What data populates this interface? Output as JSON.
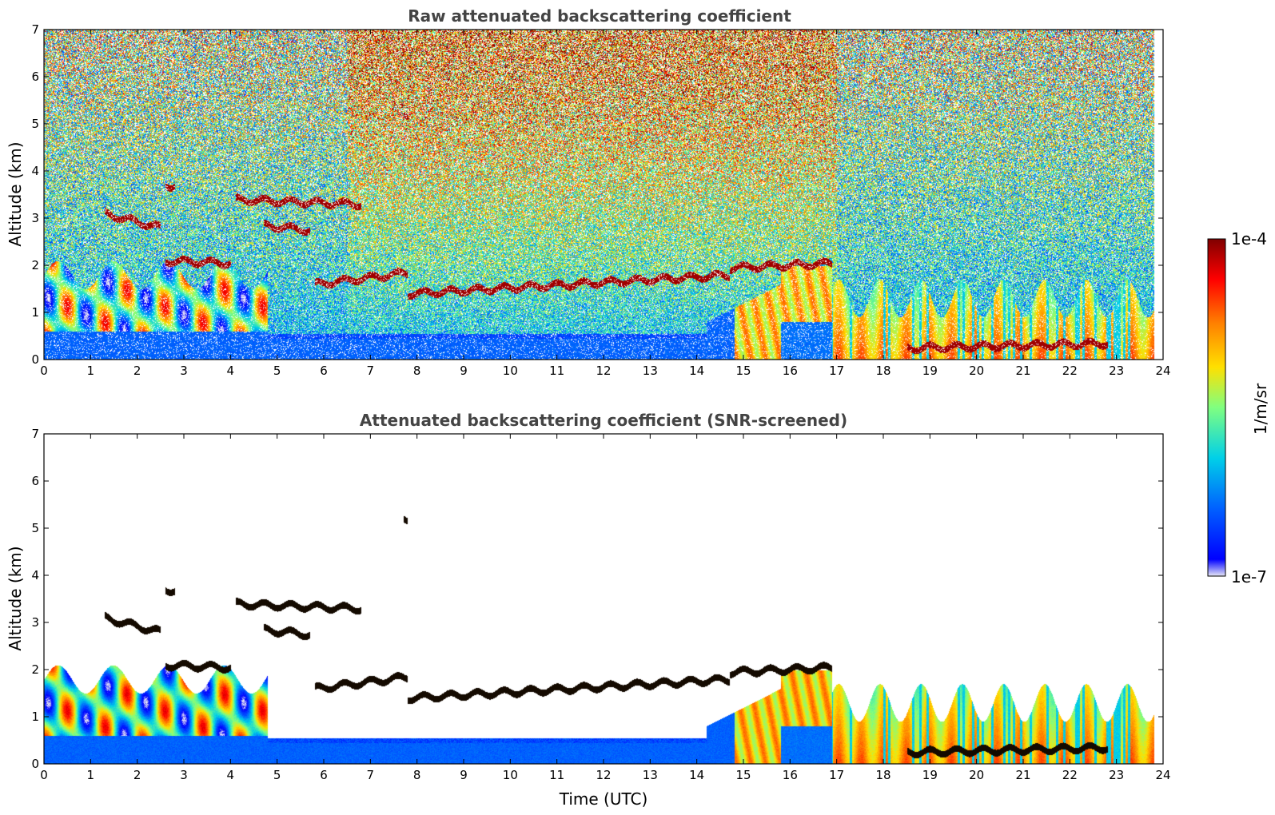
{
  "chart_data": [
    {
      "type": "heatmap",
      "title": "Raw attenuated backscattering coefficient",
      "xlabel": "",
      "ylabel": "Altitude (km)",
      "xlim": [
        0,
        24
      ],
      "ylim": [
        0,
        7
      ],
      "xticks": [
        0,
        1,
        2,
        3,
        4,
        5,
        6,
        7,
        8,
        9,
        10,
        11,
        12,
        13,
        14,
        15,
        16,
        17,
        18,
        19,
        20,
        21,
        22,
        23,
        24
      ],
      "yticks": [
        0,
        1,
        2,
        3,
        4,
        5,
        6,
        7
      ],
      "screened": false,
      "data_end_time": 23.8
    },
    {
      "type": "heatmap",
      "title": "Attenuated backscattering coefficient (SNR-screened)",
      "xlabel": "Time (UTC)",
      "ylabel": "Altitude (km)",
      "xlim": [
        0,
        24
      ],
      "ylim": [
        0,
        7
      ],
      "xticks": [
        0,
        1,
        2,
        3,
        4,
        5,
        6,
        7,
        8,
        9,
        10,
        11,
        12,
        13,
        14,
        15,
        16,
        17,
        18,
        19,
        20,
        21,
        22,
        23,
        24
      ],
      "yticks": [
        0,
        1,
        2,
        3,
        4,
        5,
        6,
        7
      ],
      "screened": true,
      "data_end_time": 23.8
    }
  ],
  "colorbar": {
    "label": "1/m/sr",
    "min_label": "1e-7",
    "max_label": "1e-4",
    "scale": "log",
    "colormap": [
      "#e6e6f5",
      "#0000ff",
      "#0080ff",
      "#00e0e0",
      "#80ff80",
      "#ffe000",
      "#ff8000",
      "#ff0000",
      "#800000"
    ]
  },
  "features": {
    "cloud_layers": [
      {
        "t0": 1.3,
        "t1": 2.5,
        "alt0": 3.1,
        "alt1": 2.8
      },
      {
        "t0": 4.1,
        "t1": 6.8,
        "alt0": 3.4,
        "alt1": 3.3
      },
      {
        "t0": 4.7,
        "t1": 5.7,
        "alt0": 2.85,
        "alt1": 2.75
      },
      {
        "t0": 2.6,
        "t1": 4.0,
        "alt0": 2.1,
        "alt1": 2.05
      },
      {
        "t0": 5.8,
        "t1": 7.8,
        "alt0": 1.6,
        "alt1": 1.85
      },
      {
        "t0": 7.8,
        "t1": 14.7,
        "alt0": 1.4,
        "alt1": 1.8
      },
      {
        "t0": 14.7,
        "t1": 16.9,
        "alt0": 1.95,
        "alt1": 2.05
      },
      {
        "t0": 18.5,
        "t1": 22.8,
        "alt0": 0.25,
        "alt1": 0.35
      },
      {
        "t0": 2.6,
        "t1": 2.8,
        "alt0": 3.7,
        "alt1": 3.7
      },
      {
        "t0": 7.7,
        "t1": 7.8,
        "alt0": 5.2,
        "alt1": 5.2
      }
    ],
    "boundary_layer": {
      "night_top_km": 1.8,
      "midday_surface_top_km": 0.45,
      "evening_top_km": 1.3
    }
  }
}
